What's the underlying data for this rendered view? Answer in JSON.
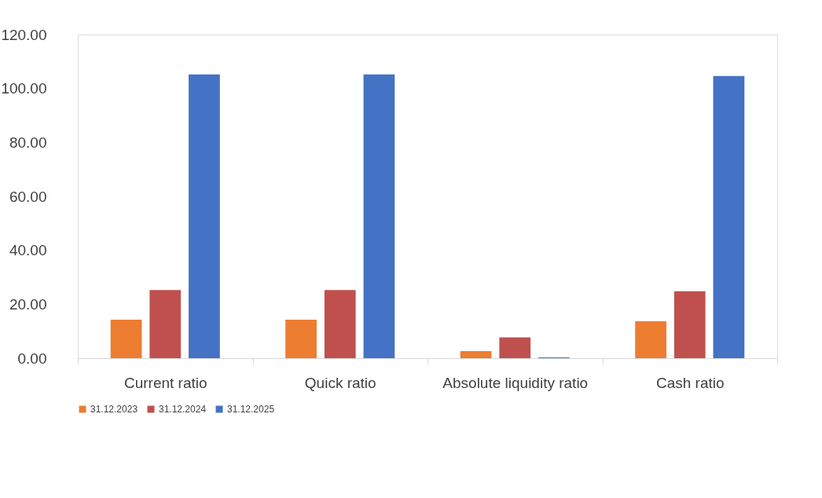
{
  "chart_data": {
    "type": "bar",
    "categories": [
      "Current ratio",
      "Quick ratio",
      "Absolute liquidity ratio",
      "Cash ratio"
    ],
    "series": [
      {
        "name": "31.12.2023",
        "color": "#ed7d31",
        "values": [
          14.3,
          14.3,
          2.6,
          13.7
        ]
      },
      {
        "name": "31.12.2024",
        "color": "#c0504d",
        "values": [
          25.3,
          25.3,
          7.7,
          24.8
        ]
      },
      {
        "name": "31.12.2025",
        "color": "#4472c4",
        "values": [
          105.2,
          105.2,
          0.3,
          104.6
        ]
      }
    ],
    "ylim": [
      0,
      120
    ],
    "yticks": [
      {
        "value": 0,
        "label": "0.00"
      },
      {
        "value": 20,
        "label": "20.00"
      },
      {
        "value": 40,
        "label": "40.00"
      },
      {
        "value": 60,
        "label": "60.00"
      },
      {
        "value": 80,
        "label": "80.00"
      },
      {
        "value": 100,
        "label": "100.00"
      },
      {
        "value": 120,
        "label": "120.00"
      }
    ],
    "grid": false,
    "legend": "bottom"
  }
}
